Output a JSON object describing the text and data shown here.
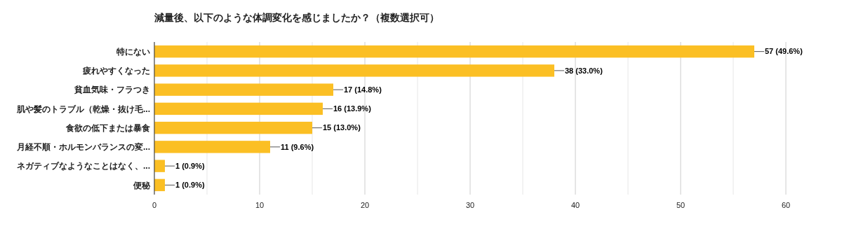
{
  "chart_data": {
    "type": "bar",
    "orientation": "horizontal",
    "title": "減量後、以下のような体調変化を感じましたか？（複数選択可）",
    "categories": [
      "特にない",
      "疲れやすくなった",
      "貧血気味・フラつき",
      "肌や髪のトラブル（乾燥・抜け毛...",
      "食欲の低下または暴食",
      "月経不順・ホルモンバランスの変...",
      "ネガティブなようなことはなく、...",
      "便秘"
    ],
    "values": [
      57,
      38,
      17,
      16,
      15,
      11,
      1,
      1
    ],
    "value_labels": [
      "57 (49.6%)",
      "38 (33.0%)",
      "17 (14.8%)",
      "16 (13.9%)",
      "15 (13.0%)",
      "11 (9.6%)",
      "1 (0.9%)",
      "1 (0.9%)"
    ],
    "color": "#fbbf24",
    "xlim": [
      0,
      60
    ],
    "xticks": [
      0,
      {
        "value": 5,
        "label": null
      },
      10,
      {
        "value": 15,
        "label": null
      },
      20,
      {
        "value": 25,
        "label": null
      },
      30,
      {
        "value": 35,
        "label": null
      },
      40,
      {
        "value": 45,
        "label": null
      },
      50,
      {
        "value": 55,
        "label": null
      },
      60
    ],
    "grid": "x"
  }
}
